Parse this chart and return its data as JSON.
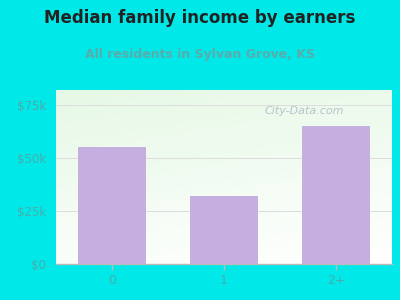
{
  "title": "Median family income by earners",
  "subtitle": "All residents in Sylvan Grove, KS",
  "categories": [
    "0",
    "1",
    "2+"
  ],
  "values": [
    55000,
    32000,
    65000
  ],
  "bar_color": "#c5aee0",
  "title_color": "#222222",
  "subtitle_color": "#5aacac",
  "tick_label_color": "#4aacac",
  "background_color": "#00e8e8",
  "ylim": [
    0,
    82000
  ],
  "yticks": [
    0,
    25000,
    50000,
    75000
  ],
  "ytick_labels": [
    "$0",
    "$25k",
    "$50k",
    "$75k"
  ],
  "watermark": "City-Data.com",
  "figsize": [
    4.0,
    3.0
  ],
  "dpi": 100,
  "plot_grad_top": "#d0ecd0",
  "plot_grad_bottom": "#f8fff8",
  "grid_color": "#dddddd",
  "spine_color": "#bbbbbb"
}
